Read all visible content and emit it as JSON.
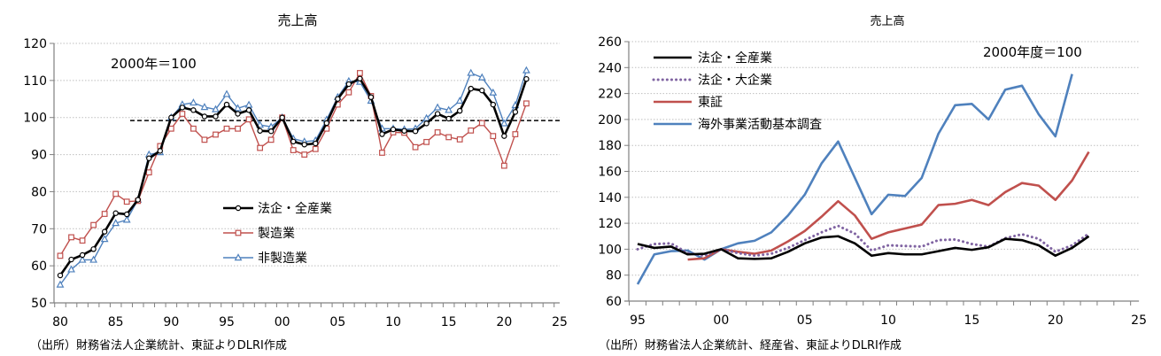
{
  "chart_data": [
    {
      "type": "line",
      "title": "売上高",
      "annotation": "2000年＝100",
      "xlabel": "",
      "ylabel": "",
      "ylim": [
        50,
        120
      ],
      "yticks": [
        50,
        60,
        70,
        80,
        90,
        100,
        110,
        120
      ],
      "xlim": [
        1980,
        2025
      ],
      "xtick_labels": [
        "80",
        "85",
        "90",
        "95",
        "00",
        "05",
        "10",
        "15",
        "20",
        "25"
      ],
      "xtick_values": [
        1980,
        1985,
        1990,
        1995,
        2000,
        2005,
        2010,
        2015,
        2020,
        2025
      ],
      "grid": true,
      "legend_position": "center-lower",
      "x": [
        1980,
        1981,
        1982,
        1983,
        1984,
        1985,
        1986,
        1987,
        1988,
        1989,
        1990,
        1991,
        1992,
        1993,
        1994,
        1995,
        1996,
        1997,
        1998,
        1999,
        2000,
        2001,
        2002,
        2003,
        2004,
        2005,
        2006,
        2007,
        2008,
        2009,
        2010,
        2011,
        2012,
        2013,
        2014,
        2015,
        2016,
        2017,
        2018,
        2019,
        2020,
        2021,
        2022
      ],
      "series": [
        {
          "name": "法企・全産業",
          "color": "#000000",
          "marker": "circle",
          "values": [
            57.4,
            61.7,
            62.9,
            64.5,
            69.2,
            74.2,
            73.9,
            77.8,
            89.0,
            91.0,
            100.0,
            102.7,
            102.0,
            100.3,
            100.3,
            103.5,
            101.0,
            102.0,
            96.4,
            96.3,
            100.0,
            93.5,
            92.7,
            93.0,
            98.5,
            105.0,
            109.0,
            110.5,
            105.5,
            95.5,
            96.8,
            96.4,
            96.3,
            98.4,
            101.0,
            99.7,
            101.8,
            107.8,
            107.3,
            103.5,
            95.0,
            101.5,
            110.4
          ]
        },
        {
          "name": "製造業",
          "color": "#C0504D",
          "marker": "square",
          "values": [
            62.7,
            67.7,
            66.8,
            71.0,
            74.0,
            79.4,
            77.3,
            77.5,
            85.2,
            92.3,
            97.0,
            101.0,
            97.0,
            94.0,
            95.4,
            97.0,
            97.0,
            99.5,
            91.8,
            94.0,
            100.0,
            91.2,
            90.0,
            91.5,
            97.0,
            103.5,
            106.8,
            112.0,
            105.8,
            90.5,
            96.0,
            95.9,
            92.0,
            93.4,
            96.0,
            94.7,
            94.1,
            96.5,
            98.5,
            95.0,
            87.0,
            95.5,
            103.8
          ]
        },
        {
          "name": "非製造業",
          "color": "#4F81BD",
          "marker": "triangle",
          "values": [
            54.9,
            59.0,
            61.6,
            61.6,
            67.2,
            71.5,
            72.4,
            77.8,
            90.0,
            90.6,
            100.0,
            103.5,
            104.0,
            102.8,
            102.2,
            106.3,
            102.5,
            103.4,
            98.0,
            97.5,
            100.0,
            94.3,
            93.5,
            93.8,
            99.4,
            105.5,
            109.8,
            109.6,
            104.5,
            97.0,
            97.0,
            96.8,
            97.0,
            99.8,
            102.7,
            102.0,
            104.5,
            112.0,
            110.8,
            106.7,
            98.4,
            103.3,
            112.7
          ]
        }
      ],
      "reference_line": {
        "value": 99.2,
        "style": "dashed",
        "color": "#000000",
        "x_start": 1986.3,
        "x_end": 2025
      }
    },
    {
      "type": "line",
      "title": "売上高",
      "annotation": "2000年度＝100",
      "xlabel": "",
      "ylabel": "",
      "ylim": [
        60,
        260
      ],
      "yticks": [
        60,
        80,
        100,
        120,
        140,
        160,
        180,
        200,
        220,
        240,
        260
      ],
      "xlim": [
        1995,
        2025
      ],
      "xtick_labels": [
        "95",
        "00",
        "05",
        "10",
        "15",
        "20",
        "25"
      ],
      "xtick_values": [
        1995,
        2000,
        2005,
        2010,
        2015,
        2020,
        2025
      ],
      "grid": true,
      "legend_position": "upper-left",
      "x": [
        1995,
        1996,
        1997,
        1998,
        1999,
        2000,
        2001,
        2002,
        2003,
        2004,
        2005,
        2006,
        2007,
        2008,
        2009,
        2010,
        2011,
        2012,
        2013,
        2014,
        2015,
        2016,
        2017,
        2018,
        2019,
        2020,
        2021,
        2022
      ],
      "series": [
        {
          "name": "法企・全産業",
          "color": "#000000",
          "style": "solid",
          "values": [
            104,
            101,
            102,
            96,
            96.5,
            100,
            93,
            92.5,
            93,
            98,
            104.5,
            109,
            110,
            104.5,
            95,
            97,
            96,
            96,
            98.5,
            101,
            99.5,
            101.5,
            108,
            107,
            103,
            95,
            101,
            110
          ]
        },
        {
          "name": "法企・大企業",
          "color": "#8064A2",
          "style": "dotted",
          "values": [
            100,
            104,
            104.5,
            97,
            95,
            100,
            97,
            95,
            96.5,
            101,
            107,
            113,
            118,
            112,
            99,
            103,
            102.5,
            102,
            107,
            107.5,
            104,
            102,
            108.5,
            111.5,
            108,
            98,
            103,
            112
          ]
        },
        {
          "name": "東証",
          "color": "#C0504D",
          "style": "solid",
          "values": [
            null,
            null,
            null,
            92,
            93,
            100,
            98,
            96.5,
            99,
            106,
            114,
            125,
            137,
            126,
            108,
            113,
            116,
            119,
            134,
            135,
            138,
            134,
            144,
            151,
            149,
            138,
            153,
            175
          ]
        },
        {
          "name": "海外事業活動基本調査",
          "color": "#4F81BD",
          "style": "solid",
          "values": [
            73,
            96,
            98.5,
            99,
            92,
            100,
            104.5,
            106.5,
            113,
            126,
            142,
            166,
            183,
            155,
            127,
            142,
            141,
            155,
            189,
            211,
            212,
            200,
            223,
            226,
            204,
            187,
            235,
            null
          ]
        }
      ]
    }
  ],
  "left_chart": {
    "title": "売上高",
    "annotation": "2000年＝100",
    "source": "（出所）財務省法人企業統計、東証よりDLRI作成",
    "legend": [
      "法企・全産業",
      "製造業",
      "非製造業"
    ]
  },
  "right_chart": {
    "title": "売上高",
    "annotation": "2000年度＝100",
    "source": "（出所）財務省法人企業統計、経産省、東証よりDLRI作成",
    "legend": [
      "法企・全産業",
      "法企・大企業",
      "東証",
      "海外事業活動基本調査"
    ]
  }
}
